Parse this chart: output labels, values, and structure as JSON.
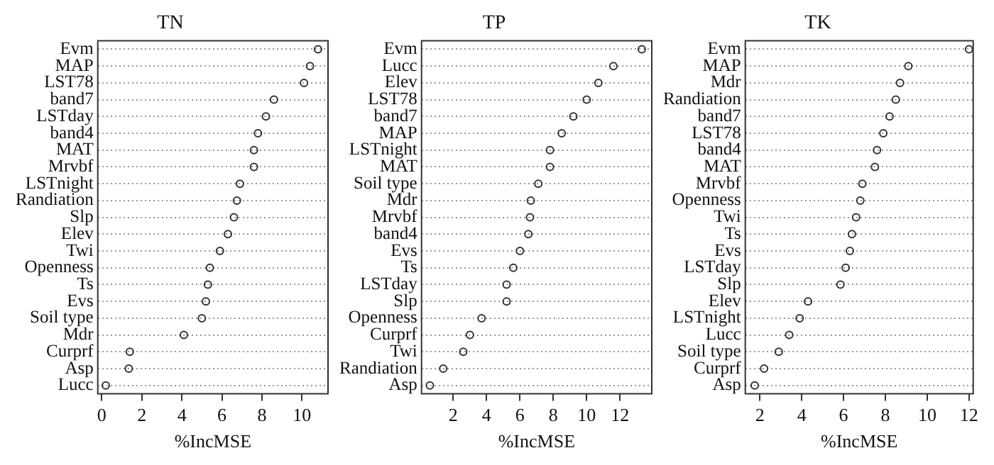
{
  "chart_data": [
    {
      "type": "scatter",
      "orientation": "horizontal",
      "title": "TN",
      "xlabel": "%IncMSE",
      "categories": [
        "Evm",
        "MAP",
        "LST78",
        "band7",
        "LSTday",
        "band4",
        "MAT",
        "Mrvbf",
        "LSTnight",
        "Randiation",
        "Slp",
        "Elev",
        "Twi",
        "Openness",
        "Ts",
        "Evs",
        "Soil type",
        "Mdr",
        "Curprf",
        "Asp",
        "Lucc"
      ],
      "values": [
        10.8,
        10.4,
        10.1,
        8.6,
        8.2,
        7.8,
        7.6,
        7.6,
        6.9,
        6.75,
        6.6,
        6.3,
        5.9,
        5.4,
        5.3,
        5.2,
        5.0,
        4.1,
        1.4,
        1.35,
        0.2
      ],
      "color": "#333333",
      "xlim": [
        -0.2,
        11.3
      ],
      "xticks": [
        0,
        2,
        4,
        6,
        8,
        10
      ],
      "grid": "y",
      "marker": "circle"
    },
    {
      "type": "scatter",
      "orientation": "horizontal",
      "title": "TP",
      "xlabel": "%IncMSE",
      "categories": [
        "Evm",
        "Lucc",
        "Elev",
        "LST78",
        "band7",
        "MAP",
        "LSTnight",
        "MAT",
        "Soil type",
        "Mdr",
        "Mrvbf",
        "band4",
        "Evs",
        "Ts",
        "LSTday",
        "Slp",
        "Openness",
        "Curprf",
        "Twi",
        "Randiation",
        "Asp"
      ],
      "values": [
        13.3,
        11.6,
        10.7,
        10.0,
        9.2,
        8.5,
        7.8,
        7.8,
        7.1,
        6.65,
        6.6,
        6.5,
        6.0,
        5.6,
        5.2,
        5.2,
        3.7,
        3.0,
        2.6,
        1.4,
        0.6
      ],
      "color": "#333333",
      "xlim": [
        0.1,
        13.9
      ],
      "xticks": [
        2,
        4,
        6,
        8,
        10,
        12
      ],
      "grid": "y",
      "marker": "circle"
    },
    {
      "type": "scatter",
      "orientation": "horizontal",
      "title": "TK",
      "xlabel": "%IncMSE",
      "categories": [
        "Evm",
        "MAP",
        "Mdr",
        "Randiation",
        "band7",
        "LST78",
        "band4",
        "MAT",
        "Mrvbf",
        "Openness",
        "Twi",
        "Ts",
        "Evs",
        "LSTday",
        "Slp",
        "Elev",
        "LSTnight",
        "Lucc",
        "Soil type",
        "Curprf",
        "Asp"
      ],
      "values": [
        12.0,
        9.1,
        8.7,
        8.5,
        8.2,
        7.9,
        7.6,
        7.5,
        6.9,
        6.8,
        6.6,
        6.4,
        6.3,
        6.1,
        5.85,
        4.3,
        3.9,
        3.4,
        2.9,
        2.2,
        1.75
      ],
      "color": "#333333",
      "xlim": [
        1.3,
        12.2
      ],
      "xticks": [
        2,
        4,
        6,
        8,
        10,
        12
      ],
      "grid": "y",
      "marker": "circle"
    }
  ]
}
